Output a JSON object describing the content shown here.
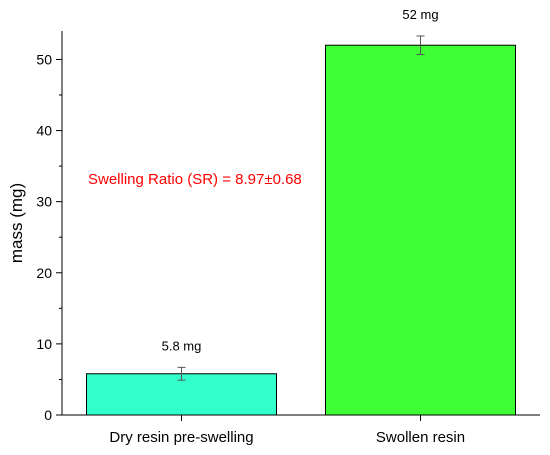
{
  "chart_data": {
    "type": "bar",
    "categories": [
      "Dry resin pre-swelling",
      "Swollen resin"
    ],
    "values": [
      5.8,
      52
    ],
    "errors": [
      0.9,
      1.3
    ],
    "data_labels": [
      "5.8 mg",
      "52 mg"
    ],
    "bar_colors": [
      "#33ffcc",
      "#3dff33"
    ],
    "title": "",
    "xlabel": "",
    "ylabel": "mass (mg)",
    "ylim": [
      0,
      54
    ],
    "yticks": [
      0,
      10,
      20,
      30,
      40,
      50
    ],
    "grid": false,
    "annotation": {
      "text": "Swelling Ratio (SR) = 8.97±0.68",
      "color": "#ff0000",
      "y_value": 33.2
    }
  }
}
